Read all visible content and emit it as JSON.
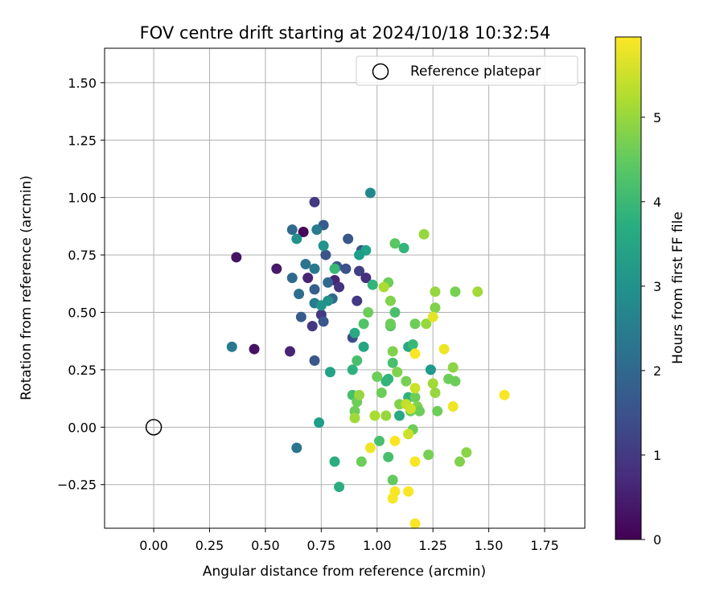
{
  "chart_data": {
    "type": "scatter",
    "title": "FOV centre drift starting at 2024/10/18 10:32:54",
    "xlabel": "Angular distance from reference (arcmin)",
    "ylabel": "Rotation from reference (arcmin)",
    "xlim": [
      -0.22,
      1.93
    ],
    "ylim": [
      -0.44,
      1.65
    ],
    "x_ticks": [
      0.0,
      0.25,
      0.5,
      0.75,
      1.0,
      1.25,
      1.5,
      1.75
    ],
    "x_tick_labels": [
      "0.00",
      "0.25",
      "0.50",
      "0.75",
      "1.00",
      "1.25",
      "1.50",
      "1.75"
    ],
    "y_ticks": [
      -0.25,
      0.0,
      0.25,
      0.5,
      0.75,
      1.0,
      1.25,
      1.5
    ],
    "y_tick_labels": [
      "−0.25",
      "0.00",
      "0.25",
      "0.50",
      "0.75",
      "1.00",
      "1.25",
      "1.50"
    ],
    "grid": true,
    "legend": {
      "position": "top-right",
      "entries": [
        "Reference platepar"
      ]
    },
    "reference_point": {
      "x": 0.0,
      "y": 0.0
    },
    "colorbar": {
      "label": "Hours from first FF file",
      "range": [
        0,
        5.95
      ],
      "ticks": [
        0,
        1,
        2,
        3,
        4,
        5
      ],
      "tick_labels": [
        "0",
        "1",
        "2",
        "3",
        "4",
        "5"
      ],
      "colormap": "viridis"
    },
    "points": [
      {
        "x": 0.37,
        "y": 0.74,
        "c": 0.3
      },
      {
        "x": 0.55,
        "y": 0.69,
        "c": 0.4
      },
      {
        "x": 0.45,
        "y": 0.34,
        "c": 0.3
      },
      {
        "x": 0.61,
        "y": 0.33,
        "c": 0.6
      },
      {
        "x": 0.67,
        "y": 0.85,
        "c": 0.1
      },
      {
        "x": 0.72,
        "y": 0.98,
        "c": 1.0
      },
      {
        "x": 0.69,
        "y": 0.65,
        "c": 0.6
      },
      {
        "x": 0.71,
        "y": 0.44,
        "c": 1.0
      },
      {
        "x": 0.75,
        "y": 0.49,
        "c": 1.0
      },
      {
        "x": 0.81,
        "y": 0.64,
        "c": 0.6
      },
      {
        "x": 0.83,
        "y": 0.61,
        "c": 0.9
      },
      {
        "x": 0.91,
        "y": 0.55,
        "c": 1.0
      },
      {
        "x": 0.92,
        "y": 0.68,
        "c": 1.1
      },
      {
        "x": 0.95,
        "y": 0.65,
        "c": 0.8
      },
      {
        "x": 0.89,
        "y": 0.39,
        "c": 1.4
      },
      {
        "x": 0.76,
        "y": 0.46,
        "c": 1.6
      },
      {
        "x": 0.72,
        "y": 0.29,
        "c": 1.6
      },
      {
        "x": 0.66,
        "y": 0.48,
        "c": 1.7
      },
      {
        "x": 0.72,
        "y": 0.6,
        "c": 1.8
      },
      {
        "x": 0.76,
        "y": 0.88,
        "c": 1.7
      },
      {
        "x": 0.77,
        "y": 0.75,
        "c": 1.5
      },
      {
        "x": 0.82,
        "y": 0.7,
        "c": 1.6
      },
      {
        "x": 0.86,
        "y": 0.69,
        "c": 1.5
      },
      {
        "x": 0.87,
        "y": 0.82,
        "c": 1.6
      },
      {
        "x": 0.93,
        "y": 0.77,
        "c": 1.6
      },
      {
        "x": 0.78,
        "y": 0.63,
        "c": 2.0
      },
      {
        "x": 0.8,
        "y": 0.56,
        "c": 2.0
      },
      {
        "x": 0.65,
        "y": 0.58,
        "c": 2.1
      },
      {
        "x": 0.62,
        "y": 0.65,
        "c": 2.0
      },
      {
        "x": 0.62,
        "y": 0.86,
        "c": 2.0
      },
      {
        "x": 0.68,
        "y": 0.71,
        "c": 2.3
      },
      {
        "x": 0.72,
        "y": 0.69,
        "c": 2.4
      },
      {
        "x": 0.72,
        "y": 0.54,
        "c": 2.5
      },
      {
        "x": 0.73,
        "y": 0.86,
        "c": 2.5
      },
      {
        "x": 0.35,
        "y": 0.35,
        "c": 2.4
      },
      {
        "x": 0.64,
        "y": -0.09,
        "c": 2.3
      },
      {
        "x": 0.97,
        "y": 1.02,
        "c": 2.8
      },
      {
        "x": 0.64,
        "y": 0.82,
        "c": 3.0
      },
      {
        "x": 0.76,
        "y": 0.79,
        "c": 3.1
      },
      {
        "x": 0.75,
        "y": 0.53,
        "c": 3.1
      },
      {
        "x": 0.78,
        "y": 0.55,
        "c": 3.0
      },
      {
        "x": 0.74,
        "y": 0.02,
        "c": 3.3
      },
      {
        "x": 0.79,
        "y": 0.24,
        "c": 3.4
      },
      {
        "x": 0.95,
        "y": 0.77,
        "c": 3.4
      },
      {
        "x": 0.92,
        "y": 0.75,
        "c": 3.3
      },
      {
        "x": 0.94,
        "y": 0.35,
        "c": 3.5
      },
      {
        "x": 0.9,
        "y": 0.41,
        "c": 3.6
      },
      {
        "x": 0.81,
        "y": -0.15,
        "c": 3.7
      },
      {
        "x": 0.83,
        "y": -0.26,
        "c": 3.7
      },
      {
        "x": 0.89,
        "y": 0.25,
        "c": 3.8
      },
      {
        "x": 0.98,
        "y": 0.62,
        "c": 3.9
      },
      {
        "x": 1.12,
        "y": 0.78,
        "c": 3.9
      },
      {
        "x": 1.05,
        "y": 0.21,
        "c": 3.9
      },
      {
        "x": 1.04,
        "y": 0.2,
        "c": 3.9
      },
      {
        "x": 1.1,
        "y": 0.05,
        "c": 3.6
      },
      {
        "x": 1.14,
        "y": 0.35,
        "c": 3.6
      },
      {
        "x": 1.14,
        "y": 0.13,
        "c": 3.8
      },
      {
        "x": 1.24,
        "y": 0.25,
        "c": 3.2
      },
      {
        "x": 1.16,
        "y": 0.36,
        "c": 4.0
      },
      {
        "x": 0.81,
        "y": 0.69,
        "c": 4.0
      },
      {
        "x": 0.89,
        "y": 0.14,
        "c": 4.2
      },
      {
        "x": 0.91,
        "y": 0.29,
        "c": 4.2
      },
      {
        "x": 0.94,
        "y": 0.45,
        "c": 4.3
      },
      {
        "x": 1.07,
        "y": 0.28,
        "c": 4.2
      },
      {
        "x": 1.08,
        "y": 0.5,
        "c": 4.2
      },
      {
        "x": 1.08,
        "y": 0.8,
        "c": 4.4
      },
      {
        "x": 1.06,
        "y": 0.44,
        "c": 4.4
      },
      {
        "x": 1.01,
        "y": -0.06,
        "c": 4.2
      },
      {
        "x": 1.05,
        "y": -0.13,
        "c": 4.2
      },
      {
        "x": 1.07,
        "y": -0.23,
        "c": 4.5
      },
      {
        "x": 0.9,
        "y": 0.07,
        "c": 4.6
      },
      {
        "x": 0.91,
        "y": 0.11,
        "c": 4.6
      },
      {
        "x": 0.93,
        "y": -0.15,
        "c": 4.6
      },
      {
        "x": 0.96,
        "y": 0.5,
        "c": 4.6
      },
      {
        "x": 1.0,
        "y": 0.22,
        "c": 4.6
      },
      {
        "x": 1.02,
        "y": 0.15,
        "c": 4.6
      },
      {
        "x": 1.05,
        "y": 0.63,
        "c": 4.6
      },
      {
        "x": 1.06,
        "y": 0.55,
        "c": 4.8
      },
      {
        "x": 1.06,
        "y": 0.45,
        "c": 4.6
      },
      {
        "x": 1.07,
        "y": 0.33,
        "c": 4.8
      },
      {
        "x": 1.09,
        "y": 0.24,
        "c": 4.8
      },
      {
        "x": 1.1,
        "y": 0.1,
        "c": 4.8
      },
      {
        "x": 1.13,
        "y": 0.2,
        "c": 4.7
      },
      {
        "x": 1.15,
        "y": 0.07,
        "c": 4.6
      },
      {
        "x": 1.16,
        "y": -0.01,
        "c": 4.6
      },
      {
        "x": 1.17,
        "y": 0.13,
        "c": 4.6
      },
      {
        "x": 1.17,
        "y": 0.45,
        "c": 4.6
      },
      {
        "x": 1.18,
        "y": 0.09,
        "c": 4.8
      },
      {
        "x": 1.19,
        "y": 0.07,
        "c": 4.6
      },
      {
        "x": 1.21,
        "y": 0.84,
        "c": 5.0
      },
      {
        "x": 1.22,
        "y": 0.45,
        "c": 5.0
      },
      {
        "x": 1.23,
        "y": -0.12,
        "c": 4.7
      },
      {
        "x": 1.26,
        "y": 0.52,
        "c": 4.8
      },
      {
        "x": 1.26,
        "y": 0.59,
        "c": 5.0
      },
      {
        "x": 1.27,
        "y": 0.07,
        "c": 4.6
      },
      {
        "x": 1.32,
        "y": 0.21,
        "c": 4.6
      },
      {
        "x": 1.34,
        "y": 0.26,
        "c": 4.9
      },
      {
        "x": 1.35,
        "y": 0.59,
        "c": 4.7
      },
      {
        "x": 1.35,
        "y": 0.2,
        "c": 4.6
      },
      {
        "x": 1.37,
        "y": -0.15,
        "c": 4.8
      },
      {
        "x": 1.4,
        "y": -0.11,
        "c": 4.9
      },
      {
        "x": 1.45,
        "y": 0.59,
        "c": 5.1
      },
      {
        "x": 1.25,
        "y": 0.19,
        "c": 5.1
      },
      {
        "x": 1.26,
        "y": 0.15,
        "c": 5.0
      },
      {
        "x": 0.9,
        "y": 0.04,
        "c": 5.1
      },
      {
        "x": 0.92,
        "y": 0.14,
        "c": 5.0
      },
      {
        "x": 0.99,
        "y": 0.05,
        "c": 5.2
      },
      {
        "x": 1.04,
        "y": 0.05,
        "c": 5.0
      },
      {
        "x": 1.03,
        "y": 0.61,
        "c": 5.2
      },
      {
        "x": 1.13,
        "y": 0.1,
        "c": 5.4
      },
      {
        "x": 1.14,
        "y": -0.03,
        "c": 5.5
      },
      {
        "x": 1.15,
        "y": 0.08,
        "c": 5.5
      },
      {
        "x": 1.17,
        "y": 0.17,
        "c": 5.5
      },
      {
        "x": 1.25,
        "y": 0.48,
        "c": 5.7
      },
      {
        "x": 1.3,
        "y": 0.34,
        "c": 5.8
      },
      {
        "x": 1.34,
        "y": 0.09,
        "c": 5.8
      },
      {
        "x": 1.17,
        "y": 0.32,
        "c": 5.9
      },
      {
        "x": 0.97,
        "y": -0.09,
        "c": 5.8
      },
      {
        "x": 1.08,
        "y": -0.06,
        "c": 5.9
      },
      {
        "x": 1.08,
        "y": -0.28,
        "c": 5.9
      },
      {
        "x": 1.07,
        "y": -0.31,
        "c": 5.9
      },
      {
        "x": 1.14,
        "y": -0.28,
        "c": 5.9
      },
      {
        "x": 1.17,
        "y": -0.15,
        "c": 5.9
      },
      {
        "x": 1.17,
        "y": -0.42,
        "c": 5.9
      },
      {
        "x": 1.57,
        "y": 0.14,
        "c": 5.9
      }
    ]
  }
}
